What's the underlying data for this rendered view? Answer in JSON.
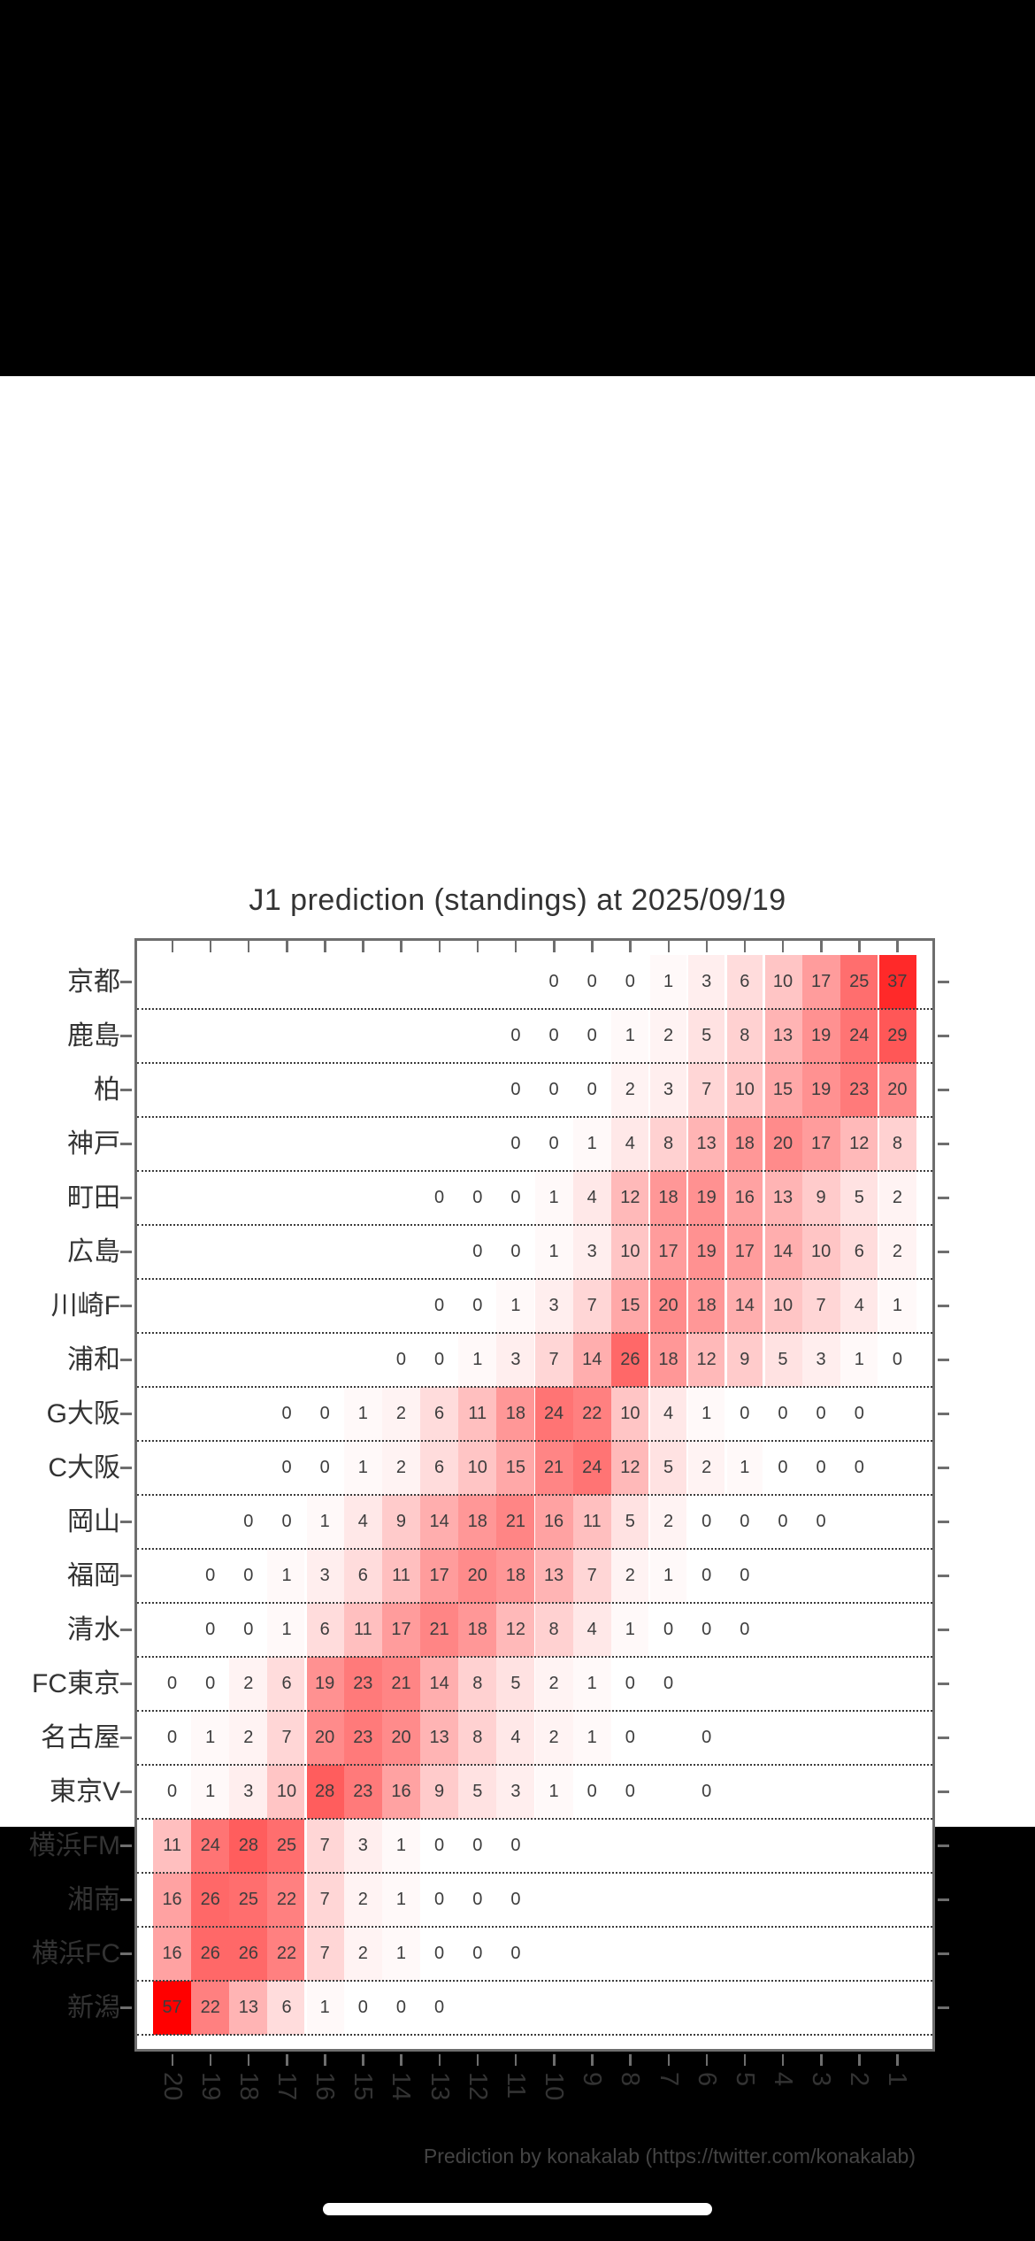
{
  "title": "J1 prediction (standings) at 2025/09/19",
  "footer": {
    "text": "Prediction by konakalab (https://twitter.com/konakalab)"
  },
  "colors": {
    "page_background": "#000000",
    "panel_background": "#ffffff",
    "axis": "#6e6e6e",
    "label_text": "#333333",
    "cell_text": "#3d3d3d",
    "heat_low": "#ffffff",
    "heat_high": "#ff0000"
  },
  "chart_data": {
    "type": "heatmap",
    "title": "J1 prediction (standings) at 2025/09/19",
    "columns": [
      20,
      19,
      18,
      17,
      16,
      15,
      14,
      13,
      12,
      11,
      10,
      9,
      8,
      7,
      6,
      5,
      4,
      3,
      2,
      1
    ],
    "legend_position": "none",
    "grid": "dotted-row-separators",
    "color_scale": {
      "low": "#ffffff",
      "high": "#ff0000",
      "vmax": 44
    },
    "teams": [
      {
        "name": "京都",
        "start": 10,
        "values": [
          0,
          0,
          0,
          1,
          3,
          6,
          10,
          17,
          25,
          37
        ]
      },
      {
        "name": "鹿島",
        "start": 11,
        "values": [
          0,
          0,
          0,
          1,
          2,
          5,
          8,
          13,
          19,
          24,
          29
        ]
      },
      {
        "name": "柏",
        "start": 11,
        "values": [
          0,
          0,
          0,
          2,
          3,
          7,
          10,
          15,
          19,
          23,
          20
        ]
      },
      {
        "name": "神戸",
        "start": 11,
        "values": [
          0,
          0,
          1,
          4,
          8,
          13,
          18,
          20,
          17,
          12,
          8
        ]
      },
      {
        "name": "町田",
        "start": 13,
        "values": [
          0,
          0,
          0,
          1,
          4,
          12,
          18,
          19,
          16,
          13,
          9,
          5,
          2
        ]
      },
      {
        "name": "広島",
        "start": 12,
        "values": [
          0,
          0,
          1,
          3,
          10,
          17,
          19,
          17,
          14,
          10,
          6,
          2
        ]
      },
      {
        "name": "川崎F",
        "start": 13,
        "values": [
          0,
          0,
          1,
          3,
          7,
          15,
          20,
          18,
          14,
          10,
          7,
          4,
          1
        ]
      },
      {
        "name": "浦和",
        "start": 14,
        "values": [
          0,
          0,
          1,
          3,
          7,
          14,
          26,
          18,
          12,
          9,
          5,
          3,
          1,
          0
        ]
      },
      {
        "name": "G大阪",
        "start": 17,
        "values": [
          0,
          0,
          1,
          2,
          6,
          11,
          18,
          24,
          22,
          10,
          4,
          1,
          0,
          0,
          0,
          0
        ]
      },
      {
        "name": "C大阪",
        "start": 17,
        "values": [
          0,
          0,
          1,
          2,
          6,
          10,
          15,
          21,
          24,
          12,
          5,
          2,
          1,
          0,
          0,
          0
        ]
      },
      {
        "name": "岡山",
        "start": 18,
        "values": [
          0,
          0,
          1,
          4,
          9,
          14,
          18,
          21,
          16,
          11,
          5,
          2,
          0,
          0,
          0,
          0
        ]
      },
      {
        "name": "福岡",
        "start": 19,
        "values": [
          0,
          0,
          1,
          3,
          6,
          11,
          17,
          20,
          18,
          13,
          7,
          2,
          1,
          0,
          0
        ]
      },
      {
        "name": "清水",
        "start": 19,
        "values": [
          0,
          0,
          1,
          6,
          11,
          17,
          21,
          18,
          12,
          8,
          4,
          1,
          0,
          0,
          0
        ]
      },
      {
        "name": "FC東京",
        "start": 20,
        "values": [
          0,
          0,
          2,
          6,
          19,
          23,
          21,
          14,
          8,
          5,
          2,
          1,
          0,
          0
        ]
      },
      {
        "name": "名古屋",
        "start": 20,
        "values": [
          0,
          1,
          2,
          7,
          20,
          23,
          20,
          13,
          8,
          4,
          2,
          1,
          0,
          null,
          0
        ]
      },
      {
        "name": "東京V",
        "start": 20,
        "values": [
          0,
          1,
          3,
          10,
          28,
          23,
          16,
          9,
          5,
          3,
          1,
          0,
          0,
          null,
          0
        ]
      },
      {
        "name": "横浜FM",
        "start": 20,
        "values": [
          11,
          24,
          28,
          25,
          7,
          3,
          1,
          0,
          0,
          0
        ]
      },
      {
        "name": "湘南",
        "start": 20,
        "values": [
          16,
          26,
          25,
          22,
          7,
          2,
          1,
          0,
          0,
          0
        ]
      },
      {
        "name": "横浜FC",
        "start": 20,
        "values": [
          16,
          26,
          26,
          22,
          7,
          2,
          1,
          0,
          0,
          0
        ]
      },
      {
        "name": "新潟",
        "start": 20,
        "values": [
          57,
          22,
          13,
          6,
          1,
          0,
          0,
          0
        ]
      }
    ]
  }
}
